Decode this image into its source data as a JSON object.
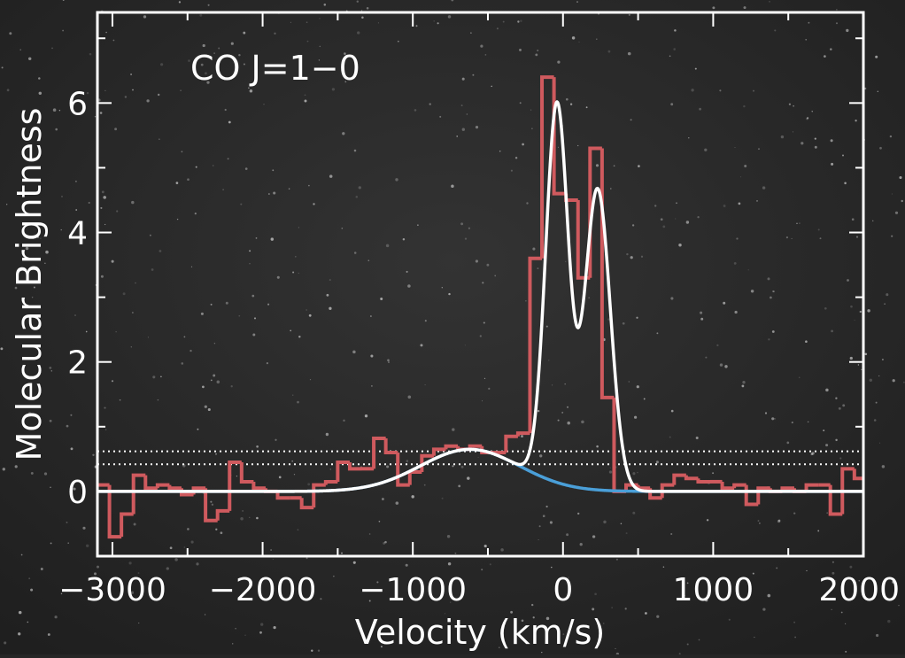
{
  "chart_data": {
    "type": "line",
    "annotation": "CO J=1−0",
    "xlabel": "Velocity (km/s)",
    "ylabel": "Molecular Brightness",
    "xlim": [
      -3100,
      2000
    ],
    "ylim": [
      -1.0,
      7.4
    ],
    "x_ticks": [
      -3000,
      -2000,
      -1000,
      0,
      1000,
      2000
    ],
    "x_tick_labels": [
      "−3000",
      "−2000",
      "−1000",
      "0",
      "1000",
      "2000"
    ],
    "y_ticks": [
      0,
      2,
      4,
      6
    ],
    "y_tick_labels": [
      "0",
      "2",
      "4",
      "6"
    ],
    "grid": false,
    "colors": {
      "background": "#262626",
      "axes": "#ffffff",
      "data_histogram": "#cf5a5e",
      "total_fit": "#ffffff",
      "broad_component": "#4a9fd8",
      "reference_lines": "#ffffff"
    },
    "reference_lines_y": [
      0.62,
      0.42
    ],
    "histogram": {
      "style": "step",
      "bin_edges": [
        -3100,
        -3020,
        -2940,
        -2860,
        -2780,
        -2700,
        -2620,
        -2540,
        -2460,
        -2380,
        -2300,
        -2220,
        -2140,
        -2060,
        -1980,
        -1900,
        -1820,
        -1740,
        -1660,
        -1580,
        -1500,
        -1420,
        -1340,
        -1260,
        -1180,
        -1100,
        -1020,
        -940,
        -860,
        -780,
        -700,
        -620,
        -540,
        -460,
        -380,
        -300,
        -220,
        -140,
        -60,
        20,
        100,
        180,
        260,
        340,
        420,
        500,
        580,
        660,
        740,
        820,
        900,
        980,
        1060,
        1140,
        1220,
        1300,
        1380,
        1460,
        1540,
        1620,
        1700,
        1780,
        1860,
        1940,
        2000
      ],
      "values": [
        0.1,
        -0.7,
        -0.35,
        0.25,
        0.05,
        0.1,
        0.05,
        -0.05,
        0.05,
        -0.45,
        -0.3,
        0.45,
        0.15,
        0.05,
        0.0,
        -0.1,
        -0.1,
        -0.25,
        0.1,
        0.15,
        0.45,
        0.35,
        0.35,
        0.82,
        0.6,
        0.1,
        0.3,
        0.55,
        0.65,
        0.7,
        0.65,
        0.7,
        0.6,
        0.6,
        0.85,
        0.9,
        3.6,
        6.4,
        4.6,
        4.5,
        3.3,
        5.3,
        1.45,
        0.0,
        0.1,
        0.05,
        -0.1,
        0.1,
        0.25,
        0.2,
        0.15,
        0.15,
        0.05,
        0.1,
        -0.2,
        0.05,
        0.0,
        0.05,
        0.0,
        0.1,
        0.1,
        -0.35,
        0.35,
        0.2
      ]
    },
    "series": [
      {
        "model": "gaussian",
        "components": [
          {
            "amplitude": 0.65,
            "center": -620,
            "sigma": 330
          }
        ]
      },
      {
        "model": "gaussian_sum",
        "components": [
          {
            "amplitude": 0.65,
            "center": -620,
            "sigma": 330
          },
          {
            "amplitude": 5.85,
            "center": -40,
            "sigma": 75
          },
          {
            "amplitude": 4.65,
            "center": 230,
            "sigma": 85
          }
        ]
      }
    ]
  }
}
